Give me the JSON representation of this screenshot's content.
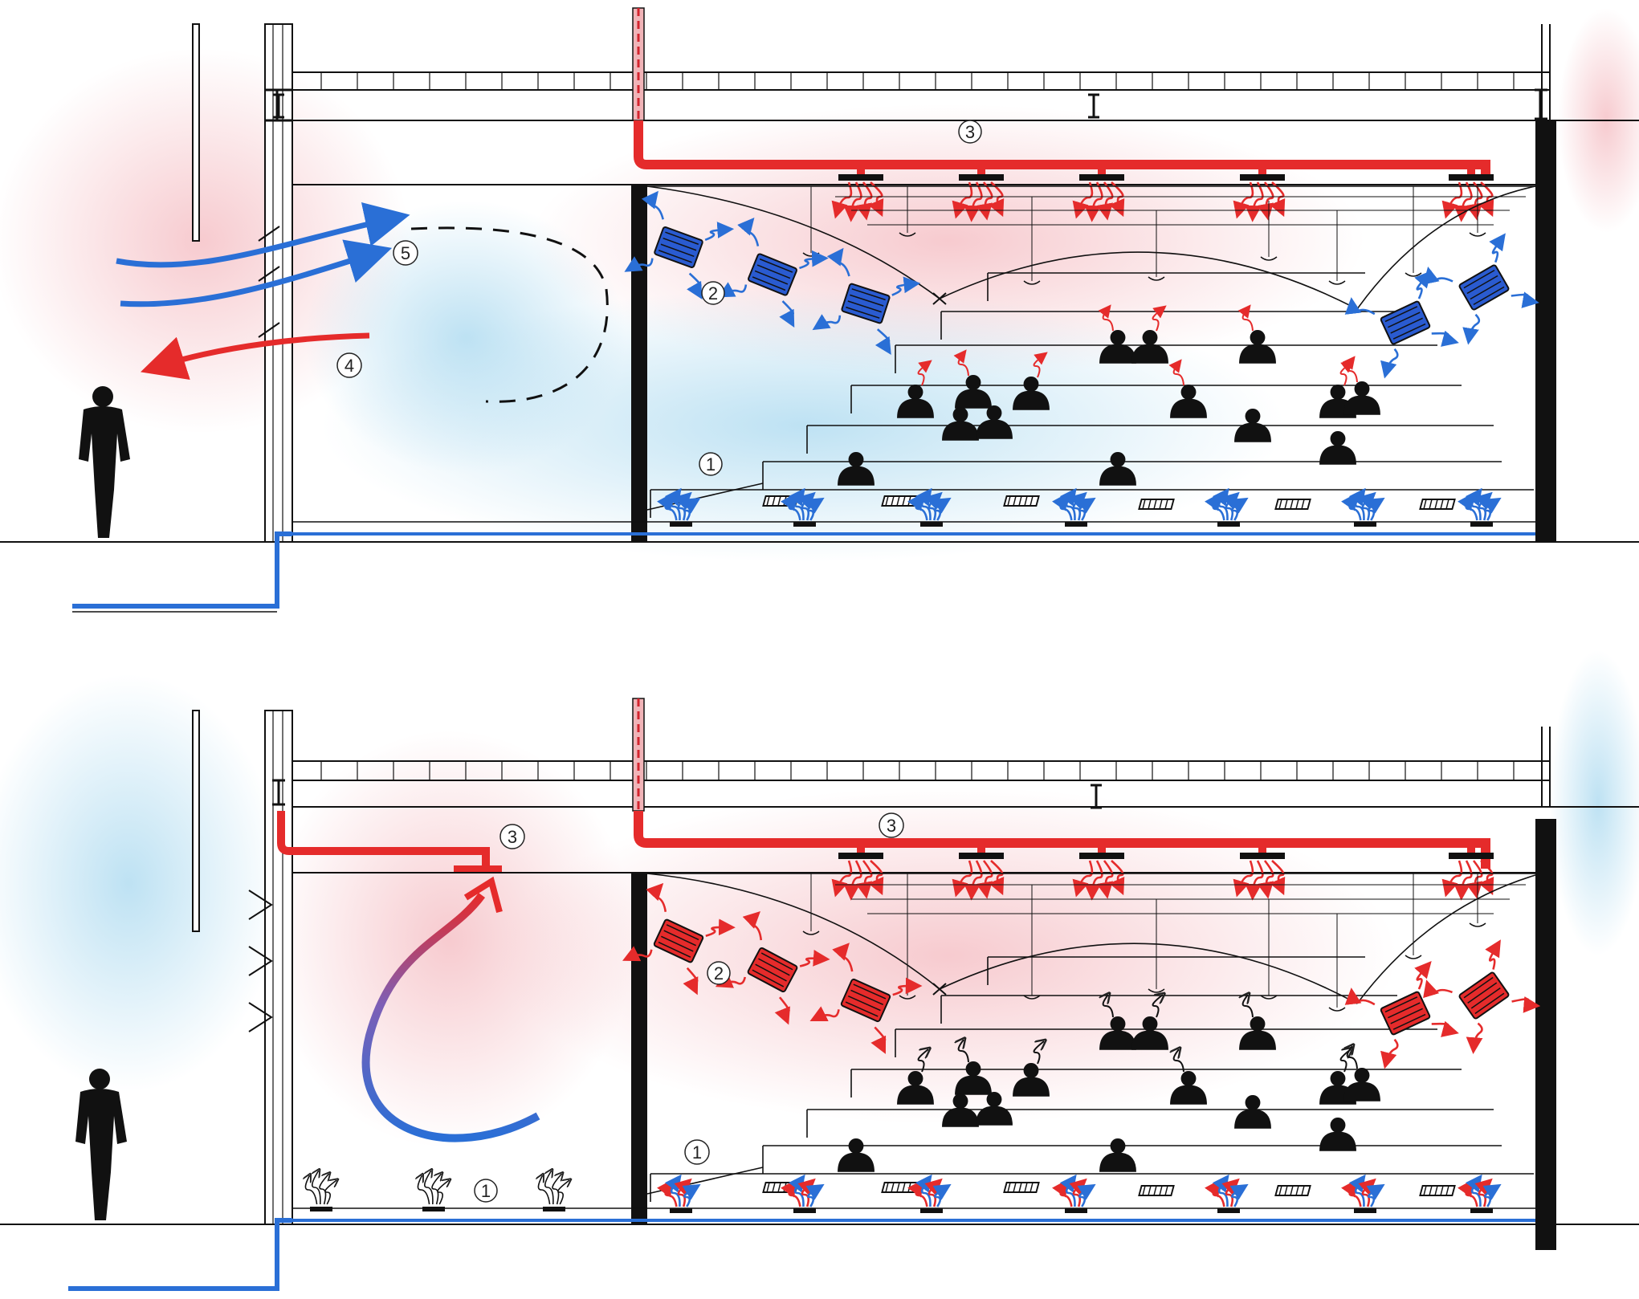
{
  "colors": {
    "warm": "#e52b2b",
    "cool": "#2a6fd6",
    "ink": "#111111",
    "warm_wash": "#f6c9cc",
    "cool_wash": "#bfe3f2"
  },
  "icons": {
    "person": "person-silhouette-icon",
    "radiator": "radiator-icon",
    "outlet": "air-outlet-icon",
    "lamp": "pendant-lamp-icon"
  },
  "sections": {
    "top": {
      "labels": {
        "floor_outlets_left": "1",
        "radiator": "2",
        "duct": "3",
        "exhaust": "4",
        "intake": "5"
      }
    },
    "bottom": {
      "labels": {
        "floor_outlets_left": "1",
        "floor_outlets_right": "1",
        "radiator": "2",
        "duct_left": "3",
        "duct": "3"
      }
    }
  }
}
